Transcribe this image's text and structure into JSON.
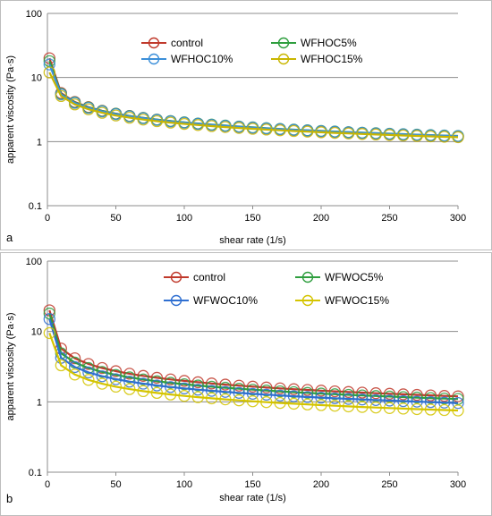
{
  "chart_data": [
    {
      "type": "line",
      "panel_label": "a",
      "xlabel": "shear rate (1/s)",
      "ylabel": "apparent viscosity (Pa·s)",
      "xlim": [
        0,
        300
      ],
      "ylim": [
        0.1,
        100
      ],
      "y_scale": "log",
      "x_ticks": [
        "0",
        "50",
        "100",
        "150",
        "200",
        "250",
        "300"
      ],
      "y_ticks": [
        "0.1",
        "1",
        "10",
        "100"
      ],
      "grid": "horizontal",
      "legend": "top, two columns",
      "x": [
        1.5,
        10,
        20,
        30,
        40,
        50,
        60,
        70,
        80,
        90,
        100,
        110,
        120,
        130,
        140,
        150,
        160,
        170,
        180,
        190,
        200,
        210,
        220,
        230,
        240,
        250,
        260,
        270,
        280,
        290,
        300
      ],
      "series": [
        {
          "name": "control",
          "color": "#c0392b",
          "y0": 20,
          "k": 16.5,
          "n": 0.54
        },
        {
          "name": "WFHOC5%",
          "color": "#2e9e3e",
          "y0": 18,
          "k": 15.5,
          "n": 0.555
        },
        {
          "name": "WFHOC10%",
          "color": "#3b8fd9",
          "y0": 16,
          "k": 15.0,
          "n": 0.56
        },
        {
          "name": "WFHOC15%",
          "color": "#c9b600",
          "y0": 12,
          "k": 14.0,
          "n": 0.565
        }
      ]
    },
    {
      "type": "line",
      "panel_label": "b",
      "xlabel": "shear rate (1/s)",
      "ylabel": "apparent viscosity (Pa·s)",
      "xlim": [
        0,
        300
      ],
      "ylim": [
        0.1,
        100
      ],
      "y_scale": "log",
      "x_ticks": [
        "0",
        "50",
        "100",
        "150",
        "200",
        "250",
        "300"
      ],
      "y_ticks": [
        "0.1",
        "1",
        "10",
        "100"
      ],
      "grid": "horizontal",
      "legend": "top, two columns",
      "x": [
        1.5,
        10,
        20,
        30,
        40,
        50,
        60,
        70,
        80,
        90,
        100,
        110,
        120,
        130,
        140,
        150,
        160,
        170,
        180,
        190,
        200,
        210,
        220,
        230,
        240,
        250,
        260,
        270,
        280,
        290,
        300
      ],
      "series": [
        {
          "name": "control",
          "color": "#c0392b",
          "y0": 20,
          "k": 16.5,
          "n": 0.54
        },
        {
          "name": "WFWOC5%",
          "color": "#2e9e3e",
          "y0": 18,
          "k": 13.5,
          "n": 0.56
        },
        {
          "name": "WFWOC10%",
          "color": "#2f6fd1",
          "y0": 15,
          "k": 11.5,
          "n": 0.565
        },
        {
          "name": "WFWOC15%",
          "color": "#d4c400",
          "y0": 9.5,
          "k": 9.0,
          "n": 0.565
        }
      ]
    }
  ]
}
